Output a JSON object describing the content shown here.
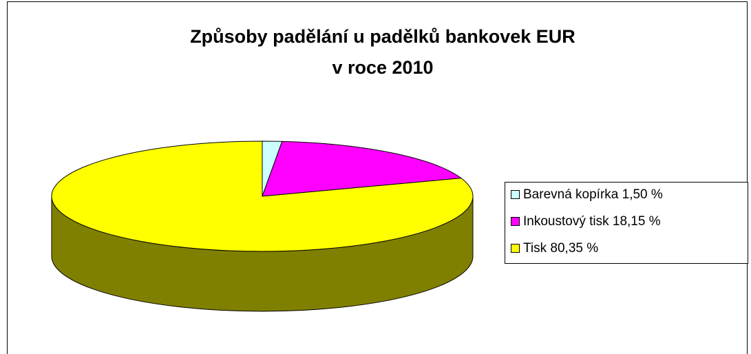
{
  "chart_data": {
    "type": "pie3d",
    "title": [
      "Způsoby padělání u padělků bankovek EUR",
      "v roce 2010"
    ],
    "categories": [
      "Barevná kopírka 1,50 %",
      "Inkoustový tisk 18,15 %",
      "Tisk 80,35 %"
    ],
    "values": [
      1.5,
      18.15,
      80.35
    ],
    "colors": [
      "#ccffff",
      "#ff00ff",
      "#ffff00"
    ],
    "legend": "right"
  }
}
